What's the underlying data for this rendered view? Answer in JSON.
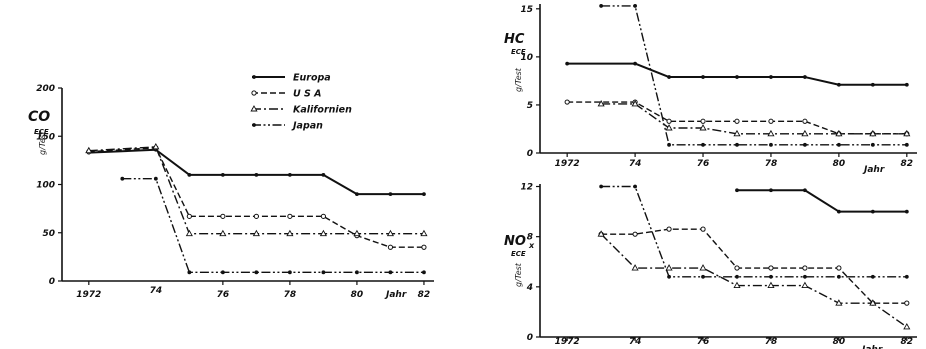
{
  "chart_data": [
    {
      "type": "line",
      "title": "CO",
      "title_sub": "ECE",
      "ylabel": "g/Test",
      "xlabel": "Jahr",
      "xlim": [
        1971.2,
        1982.3
      ],
      "ylim": [
        0,
        200
      ],
      "xticks": [
        1972,
        1976,
        1978,
        1980,
        1982
      ],
      "xtick_labels": [
        "1972",
        "76",
        "78",
        "80",
        "82"
      ],
      "extra_tick_labels": [
        {
          "x": 1974,
          "label": "74"
        }
      ],
      "yticks": [
        0,
        50,
        100,
        150,
        200
      ],
      "ytick_labels": [
        "0",
        "50",
        "100",
        "150",
        "200"
      ],
      "legend": {
        "placement": "top-right",
        "entries": [
          "Europa",
          "U S A",
          "Kalifornien",
          "Japan"
        ]
      },
      "series": [
        {
          "name": "Europa",
          "style": "solid",
          "marker": "dot",
          "x": [
            1972,
            1974,
            1975,
            1976,
            1977,
            1978,
            1979,
            1980,
            1981,
            1982
          ],
          "y": [
            133,
            136,
            110,
            110,
            110,
            110,
            110,
            90,
            90,
            90
          ]
        },
        {
          "name": "U S A",
          "style": "dashed",
          "marker": "circle",
          "x": [
            1972,
            1974,
            1975,
            1976,
            1977,
            1978,
            1979,
            1980,
            1981,
            1982
          ],
          "y": [
            134,
            138,
            67,
            67,
            67,
            67,
            67,
            47,
            35,
            35
          ]
        },
        {
          "name": "Kalifornien",
          "style": "dashdot",
          "marker": "triangle",
          "x": [
            1972,
            1974,
            1975,
            1976,
            1977,
            1978,
            1979,
            1980,
            1981,
            1982
          ],
          "y": [
            135,
            139,
            49,
            49,
            49,
            49,
            49,
            49,
            49,
            49
          ]
        },
        {
          "name": "Japan",
          "style": "dashdotdot",
          "marker": "dot",
          "x": [
            1973,
            1974,
            1975,
            1976,
            1977,
            1978,
            1979,
            1980,
            1981,
            1982
          ],
          "y": [
            106,
            106,
            9,
            9,
            9,
            9,
            9,
            9,
            9,
            9
          ]
        }
      ]
    },
    {
      "type": "line",
      "title": "HC",
      "title_sub": "ECE",
      "ylabel": "g/Test",
      "xlabel": "Jahr",
      "xlim": [
        1971.2,
        1982.3
      ],
      "ylim": [
        0,
        15.5
      ],
      "xticks": [
        1972,
        1974,
        1976,
        1978,
        1980,
        1982
      ],
      "xtick_labels": [
        "1972",
        "74",
        "76",
        "78",
        "80",
        "82"
      ],
      "yticks": [
        0,
        5,
        10,
        15
      ],
      "ytick_labels": [
        "0",
        "5",
        "10",
        "15"
      ],
      "series": [
        {
          "name": "Europa",
          "style": "solid",
          "marker": "dot",
          "x": [
            1972,
            1974,
            1975,
            1976,
            1977,
            1978,
            1979,
            1980,
            1981,
            1982
          ],
          "y": [
            9.3,
            9.3,
            7.9,
            7.9,
            7.9,
            7.9,
            7.9,
            7.1,
            7.1,
            7.1
          ]
        },
        {
          "name": "U S A",
          "style": "dashed",
          "marker": "circle",
          "x": [
            1972,
            1974,
            1975,
            1976,
            1977,
            1978,
            1979,
            1980,
            1981,
            1982
          ],
          "y": [
            5.3,
            5.3,
            3.3,
            3.3,
            3.3,
            3.3,
            3.3,
            2.0,
            2.0,
            2.0
          ]
        },
        {
          "name": "Kalifornien",
          "style": "dashdot",
          "marker": "triangle",
          "x": [
            1973,
            1974,
            1975,
            1976,
            1977,
            1978,
            1979,
            1980,
            1981,
            1982
          ],
          "y": [
            5.1,
            5.1,
            2.6,
            2.6,
            2.0,
            2.0,
            2.0,
            2.0,
            2.0,
            2.0
          ]
        },
        {
          "name": "Japan",
          "style": "dashdotdot",
          "marker": "dot",
          "x": [
            1973,
            1974,
            1975,
            1976,
            1977,
            1978,
            1979,
            1980,
            1981,
            1982
          ],
          "y": [
            15.3,
            15.3,
            0.85,
            0.85,
            0.85,
            0.85,
            0.85,
            0.85,
            0.85,
            0.85
          ]
        }
      ]
    },
    {
      "type": "line",
      "title": "NO",
      "title_sub": "ECE",
      "ylabel": "g/Test",
      "xlabel": "Jahr",
      "xlim": [
        1971.2,
        1982.3
      ],
      "ylim": [
        0,
        12.2
      ],
      "xticks": [
        1972,
        1974,
        1976,
        1978,
        1980,
        1982
      ],
      "xtick_labels": [
        "1972",
        "74",
        "76",
        "78",
        "80",
        "82"
      ],
      "yticks": [
        0,
        4,
        8,
        12
      ],
      "ytick_labels": [
        "0",
        "4",
        "8",
        "12"
      ],
      "series": [
        {
          "name": "Europa",
          "style": "solid",
          "marker": "dot",
          "x": [
            1977,
            1978,
            1979,
            1980,
            1981,
            1982
          ],
          "y": [
            11.7,
            11.7,
            11.7,
            10.0,
            10.0,
            10.0
          ]
        },
        {
          "name": "U S A",
          "style": "dashed",
          "marker": "circle",
          "x": [
            1973,
            1974,
            1975,
            1976,
            1977,
            1978,
            1979,
            1980,
            1981,
            1982
          ],
          "y": [
            8.2,
            8.2,
            8.6,
            8.6,
            5.5,
            5.5,
            5.5,
            5.5,
            2.7,
            2.7
          ]
        },
        {
          "name": "Kalifornien",
          "style": "dashdot",
          "marker": "triangle",
          "x": [
            1973,
            1974,
            1975,
            1976,
            1977,
            1978,
            1979,
            1980,
            1981,
            1982
          ],
          "y": [
            8.2,
            5.5,
            5.5,
            5.5,
            4.1,
            4.1,
            4.1,
            2.7,
            2.7,
            0.8
          ]
        },
        {
          "name": "Japan",
          "style": "dashdotdot",
          "marker": "dot",
          "x": [
            1973,
            1974,
            1975,
            1976,
            1977,
            1978,
            1979,
            1980,
            1981,
            1982
          ],
          "y": [
            12.0,
            12.0,
            4.8,
            4.8,
            4.8,
            4.8,
            4.8,
            4.8,
            4.8,
            4.8
          ]
        }
      ]
    }
  ]
}
